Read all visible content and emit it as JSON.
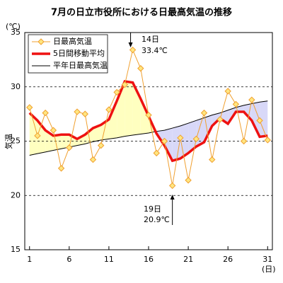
{
  "chart_data": {
    "type": "line",
    "title": "7月の日立市役所における日最高気温の推移",
    "y_unit": "(℃)",
    "y_label": "気温",
    "x_unit": "(日)",
    "x": [
      1,
      2,
      3,
      4,
      5,
      6,
      7,
      8,
      9,
      10,
      11,
      12,
      13,
      14,
      15,
      16,
      17,
      18,
      19,
      20,
      21,
      22,
      23,
      24,
      25,
      26,
      27,
      28,
      29,
      30,
      31
    ],
    "xlim": [
      0.4,
      31.6
    ],
    "xticks": [
      1,
      6,
      11,
      16,
      21,
      26,
      31
    ],
    "ylim": [
      15,
      35
    ],
    "yticks": [
      15,
      20,
      25,
      30,
      35
    ],
    "grid": true,
    "legend": "upper left",
    "series": [
      {
        "name": "日最高気温",
        "color": "#f0a030",
        "marker_fill": "#ffe680",
        "values": [
          28.1,
          25.5,
          27.6,
          26.0,
          22.5,
          24.4,
          27.7,
          27.5,
          23.3,
          24.6,
          27.9,
          29.5,
          30.2,
          33.4,
          31.7,
          27.4,
          23.9,
          25.0,
          20.9,
          25.3,
          21.4,
          25.2,
          27.6,
          23.3,
          27.0,
          29.6,
          28.4,
          25.0,
          28.8,
          26.9,
          25.1
        ]
      },
      {
        "name": "5日間移動平均",
        "color": "#ee1111",
        "values": [
          27.6,
          26.9,
          26.0,
          25.5,
          25.6,
          25.6,
          25.2,
          25.6,
          26.2,
          26.5,
          27.0,
          28.7,
          30.5,
          30.4,
          28.9,
          27.3,
          25.7,
          24.6,
          23.2,
          23.4,
          23.9,
          24.5,
          24.9,
          26.4,
          27.1,
          26.6,
          27.7,
          27.7,
          26.9,
          25.4,
          25.5
        ]
      },
      {
        "name": "平年日最高気温",
        "color": "#000000",
        "values": [
          23.7,
          23.85,
          24.0,
          24.15,
          24.3,
          24.45,
          24.6,
          24.75,
          24.95,
          25.1,
          25.2,
          25.3,
          25.45,
          25.55,
          25.65,
          25.75,
          25.9,
          26.0,
          26.2,
          26.4,
          26.65,
          26.9,
          27.15,
          27.4,
          27.6,
          27.85,
          28.1,
          28.3,
          28.45,
          28.6,
          28.7
        ]
      }
    ],
    "fill_above": "#ffffc0",
    "fill_below": "#d8d8f8",
    "annotations": [
      {
        "text": "14日"
      },
      {
        "text": "33.4℃"
      },
      {
        "text": "19日"
      },
      {
        "text": "20.9℃"
      }
    ]
  }
}
